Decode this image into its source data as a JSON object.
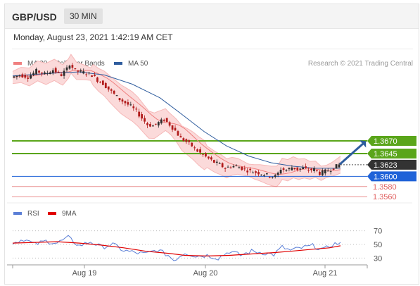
{
  "header": {
    "symbol": "GBP/USD",
    "timeframe": "30 MIN"
  },
  "datetime": "Monday, August 23, 2021 1:42:19 AM CET",
  "legend": [
    {
      "label": "MA 20 + Bollinger Bands",
      "color": "#f08080"
    },
    {
      "label": "MA 50",
      "color": "#2f5d9e"
    }
  ],
  "credit": "Research © 2021 Trading Central",
  "rsi_legend": [
    {
      "label": "RSI",
      "color": "#5b7fd6"
    },
    {
      "label": "9MA",
      "color": "#e00000"
    }
  ],
  "colors": {
    "resistance": "#5aa51a",
    "support": "#1f62d8",
    "minor_support": "#e06060",
    "current": "#333333",
    "candle_up": "#2c2c2c",
    "candle_down": "#b11b1b",
    "band": "#fbdada"
  },
  "chart_data": [
    {
      "type": "candlestick",
      "title": "GBP/USD 30 MIN",
      "x_ticks": [
        "Aug 19",
        "Aug 20",
        "Aug 21"
      ],
      "ylim": [
        1.3545,
        1.3845
      ],
      "levels": [
        {
          "label": "1.3670",
          "value": 1.367,
          "kind": "resistance"
        },
        {
          "label": "1.3645",
          "value": 1.3645,
          "kind": "resistance"
        },
        {
          "label": "1.3623",
          "value": 1.3623,
          "kind": "current"
        },
        {
          "label": "1.3600",
          "value": 1.36,
          "kind": "support"
        },
        {
          "label": "1.3580",
          "value": 1.358,
          "kind": "minor_support"
        },
        {
          "label": "1.3560",
          "value": 1.356,
          "kind": "minor_support"
        }
      ],
      "close_path": [
        [
          0,
          1.3795
        ],
        [
          3,
          1.38
        ],
        [
          6,
          1.3796
        ],
        [
          9,
          1.3808
        ],
        [
          12,
          1.3802
        ],
        [
          15,
          1.381
        ],
        [
          18,
          1.38
        ],
        [
          20,
          1.3812
        ],
        [
          21,
          1.3822
        ],
        [
          23,
          1.3808
        ],
        [
          26,
          1.3805
        ],
        [
          29,
          1.38
        ],
        [
          31,
          1.379
        ],
        [
          33,
          1.3783
        ],
        [
          35,
          1.3772
        ],
        [
          37,
          1.3762
        ],
        [
          39,
          1.3752
        ],
        [
          41,
          1.3745
        ],
        [
          43,
          1.3738
        ],
        [
          45,
          1.3728
        ],
        [
          47,
          1.3715
        ],
        [
          49,
          1.3702
        ],
        [
          51,
          1.37
        ],
        [
          53,
          1.3706
        ],
        [
          55,
          1.3712
        ],
        [
          57,
          1.3702
        ],
        [
          59,
          1.369
        ],
        [
          61,
          1.3675
        ],
        [
          63,
          1.3668
        ],
        [
          65,
          1.366
        ],
        [
          67,
          1.365
        ],
        [
          69,
          1.3642
        ],
        [
          71,
          1.3635
        ],
        [
          73,
          1.3628
        ],
        [
          75,
          1.3623
        ],
        [
          77,
          1.3616
        ],
        [
          79,
          1.362
        ],
        [
          81,
          1.362
        ],
        [
          83,
          1.3616
        ],
        [
          85,
          1.3612
        ],
        [
          87,
          1.3609
        ],
        [
          89,
          1.3607
        ],
        [
          91,
          1.3604
        ],
        [
          93,
          1.3601
        ],
        [
          95,
          1.36
        ],
        [
          96,
          1.3606
        ],
        [
          97,
          1.3615
        ],
        [
          99,
          1.3612
        ],
        [
          101,
          1.3618
        ],
        [
          103,
          1.3614
        ],
        [
          105,
          1.3616
        ],
        [
          107,
          1.3612
        ],
        [
          109,
          1.3614
        ],
        [
          111,
          1.3606
        ],
        [
          113,
          1.361
        ],
        [
          115,
          1.3614
        ],
        [
          117,
          1.362
        ],
        [
          118,
          1.3623
        ]
      ],
      "ma50_path": [
        [
          0,
          1.3798
        ],
        [
          16,
          1.3804
        ],
        [
          24,
          1.3806
        ],
        [
          33,
          1.38
        ],
        [
          43,
          1.3782
        ],
        [
          53,
          1.3755
        ],
        [
          61,
          1.3722
        ],
        [
          69,
          1.3688
        ],
        [
          77,
          1.366
        ],
        [
          85,
          1.364
        ],
        [
          93,
          1.3627
        ],
        [
          101,
          1.362
        ],
        [
          109,
          1.3616
        ],
        [
          118,
          1.3616
        ]
      ],
      "forecast": {
        "from": [
          118,
          1.3625
        ],
        "to": [
          126,
          1.3664
        ]
      }
    },
    {
      "type": "line",
      "title": "RSI",
      "y_ticks": [
        70,
        50,
        30
      ],
      "ylim": [
        20,
        80
      ],
      "rsi_path": [
        [
          0,
          52
        ],
        [
          4,
          58
        ],
        [
          8,
          50
        ],
        [
          12,
          55
        ],
        [
          16,
          52
        ],
        [
          20,
          60
        ],
        [
          24,
          48
        ],
        [
          28,
          54
        ],
        [
          32,
          46
        ],
        [
          36,
          50
        ],
        [
          40,
          41
        ],
        [
          44,
          38
        ],
        [
          48,
          36
        ],
        [
          52,
          42
        ],
        [
          56,
          34
        ],
        [
          58,
          27
        ],
        [
          62,
          38
        ],
        [
          66,
          33
        ],
        [
          70,
          34
        ],
        [
          74,
          30
        ],
        [
          78,
          40
        ],
        [
          82,
          34
        ],
        [
          86,
          40
        ],
        [
          90,
          38
        ],
        [
          94,
          35
        ],
        [
          97,
          46
        ],
        [
          100,
          41
        ],
        [
          104,
          45
        ],
        [
          108,
          48
        ],
        [
          112,
          42
        ],
        [
          115,
          50
        ],
        [
          118,
          52
        ]
      ],
      "ma9_path": [
        [
          0,
          52
        ],
        [
          8,
          53
        ],
        [
          16,
          54
        ],
        [
          24,
          52
        ],
        [
          32,
          49
        ],
        [
          40,
          45
        ],
        [
          48,
          40
        ],
        [
          56,
          37
        ],
        [
          62,
          34
        ],
        [
          70,
          33
        ],
        [
          78,
          34
        ],
        [
          86,
          36
        ],
        [
          94,
          38
        ],
        [
          100,
          40
        ],
        [
          108,
          43
        ],
        [
          114,
          45
        ],
        [
          118,
          48
        ]
      ]
    }
  ]
}
